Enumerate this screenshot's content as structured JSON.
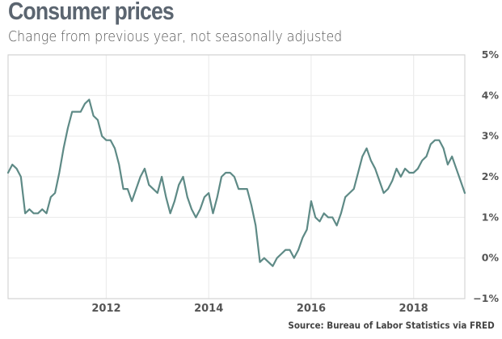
{
  "chart_data": {
    "type": "line",
    "title": "Consumer prices",
    "subtitle": "Change from previous year, not seasonally adjusted",
    "source": "Source: Bureau of Labor Statistics via FRED",
    "xlabel": "",
    "ylabel": "",
    "x_start": "2010-02",
    "x_end": "2019-01",
    "xlim": [
      2010.083,
      2019.0
    ],
    "ylim": [
      -1,
      5
    ],
    "yticks": [
      5,
      4,
      3,
      2,
      1,
      0,
      -1
    ],
    "ytick_labels": [
      "5%",
      "4%",
      "3%",
      "2%",
      "1%",
      "0%",
      "−1%"
    ],
    "xticks": [
      2012,
      2014,
      2016,
      2018
    ],
    "xtick_labels": [
      "2012",
      "2014",
      "2016",
      "2018"
    ],
    "grid": true,
    "line_color": "#5e8a86",
    "series": [
      {
        "name": "CPI change from previous year (%)",
        "frequency": "monthly",
        "values": [
          2.1,
          2.3,
          2.2,
          2.0,
          1.1,
          1.2,
          1.1,
          1.1,
          1.2,
          1.1,
          1.5,
          1.6,
          2.1,
          2.7,
          3.2,
          3.6,
          3.6,
          3.6,
          3.8,
          3.9,
          3.5,
          3.4,
          3.0,
          2.9,
          2.9,
          2.7,
          2.3,
          1.7,
          1.7,
          1.4,
          1.7,
          2.0,
          2.2,
          1.8,
          1.7,
          1.6,
          2.0,
          1.5,
          1.1,
          1.4,
          1.8,
          2.0,
          1.5,
          1.2,
          1.0,
          1.2,
          1.5,
          1.6,
          1.1,
          1.5,
          2.0,
          2.1,
          2.1,
          2.0,
          1.7,
          1.7,
          1.7,
          1.3,
          0.8,
          -0.1,
          0.0,
          -0.1,
          -0.2,
          0.0,
          0.1,
          0.2,
          0.2,
          0.0,
          0.2,
          0.5,
          0.7,
          1.4,
          1.0,
          0.9,
          1.1,
          1.0,
          1.0,
          0.8,
          1.1,
          1.5,
          1.6,
          1.7,
          2.1,
          2.5,
          2.7,
          2.4,
          2.2,
          1.9,
          1.6,
          1.7,
          1.9,
          2.2,
          2.0,
          2.2,
          2.1,
          2.1,
          2.2,
          2.4,
          2.5,
          2.8,
          2.9,
          2.9,
          2.7,
          2.3,
          2.5,
          2.2,
          1.9,
          1.6
        ]
      }
    ]
  }
}
